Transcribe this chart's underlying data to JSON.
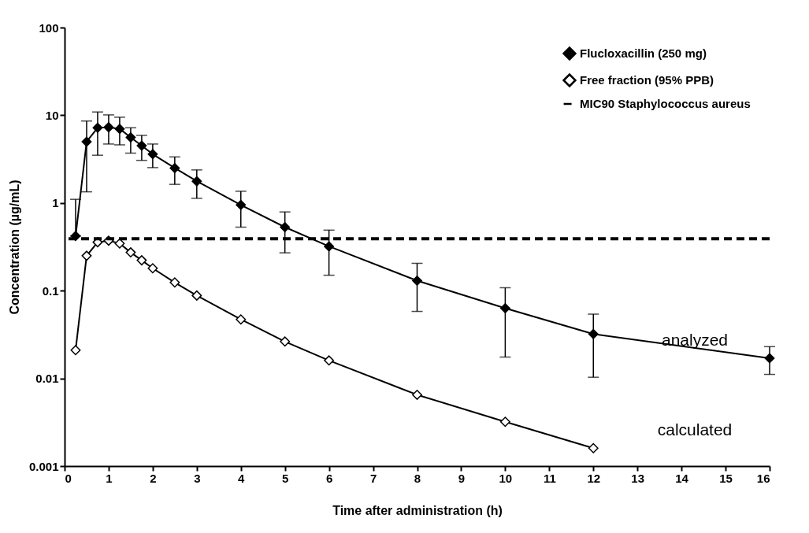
{
  "chart_data": {
    "type": "line",
    "xlabel": "Time after administration (h)",
    "ylabel": "Concentration (µg/mL)",
    "x": [
      0.25,
      0.5,
      0.75,
      1,
      1.25,
      1.5,
      1.75,
      2,
      2.5,
      3,
      4,
      5,
      6,
      8,
      10,
      12,
      16
    ],
    "series": [
      {
        "name": "Flucloxacillin (250 mg)",
        "color": "#000000",
        "marker": "diamond",
        "values": [
          0.42,
          5.0,
          7.2,
          7.3,
          7.0,
          5.6,
          4.5,
          3.6,
          2.5,
          1.77,
          0.95,
          0.53,
          0.32,
          0.13,
          0.063,
          0.032,
          0.017
        ],
        "errors": [
          [
            0.42,
            1.1
          ],
          [
            1.34,
            8.6
          ],
          [
            3.5,
            10.9
          ],
          [
            4.7,
            10.1
          ],
          [
            4.6,
            9.5
          ],
          [
            3.7,
            7.2
          ],
          [
            3.06,
            5.9
          ],
          [
            2.53,
            4.7
          ],
          [
            1.63,
            3.35
          ],
          [
            1.13,
            2.38
          ],
          [
            0.53,
            1.36
          ],
          [
            0.27,
            0.79
          ],
          [
            0.15,
            0.49
          ],
          [
            0.058,
            0.205
          ],
          [
            0.0175,
            0.108
          ],
          [
            0.0103,
            0.054
          ],
          [
            0.0111,
            0.023
          ]
        ]
      },
      {
        "name": "Free fraction (95% PPB)",
        "color": "#000000",
        "marker": "diamond",
        "x": [
          0.25,
          0.5,
          0.75,
          1,
          1.25,
          1.5,
          1.75,
          2,
          2.5,
          3,
          4,
          5,
          6,
          8,
          10,
          12
        ],
        "values": [
          0.021,
          0.25,
          0.357,
          0.372,
          0.345,
          0.273,
          0.222,
          0.18,
          0.124,
          0.088,
          0.047,
          0.0263,
          0.016,
          0.0065,
          0.0032,
          0.0016
        ]
      }
    ],
    "ref_lines": [
      {
        "axis": "y",
        "value": 0.39,
        "label": "MIC90 Staphylococcus aureus",
        "line_style": "dashed",
        "color": "#000000"
      }
    ],
    "annotations": [
      "analyzed",
      "calculated"
    ],
    "xlim": [
      0,
      16
    ],
    "xticks": [
      0,
      1,
      2,
      3,
      4,
      5,
      6,
      7,
      8,
      9,
      10,
      11,
      12,
      13,
      14,
      15,
      16
    ],
    "ylim": [
      0.001,
      100
    ],
    "yticks": [
      0.001,
      0.01,
      0.1,
      1,
      10,
      100
    ],
    "log": true,
    "grid": false,
    "legend": "top right"
  }
}
